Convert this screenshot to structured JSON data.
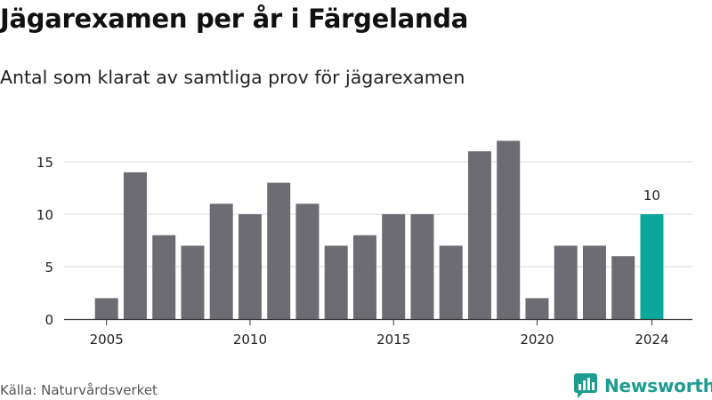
{
  "header": {
    "title": "Jägarexamen per år i Färgelanda",
    "subtitle": "Antal som klarat av samtliga prov för jägarexamen"
  },
  "footer": {
    "source": "Källa: Naturvårdsverket",
    "brand": "Newsworthy",
    "brand_icon": "newsworthy-logo-icon"
  },
  "colors": {
    "bar": "#6d6c72",
    "highlight": "#0ba79b",
    "grid": "#d9d9d9",
    "axis": "#333333",
    "brand": "#1d9c8f"
  },
  "chart_data": {
    "type": "bar",
    "title": "Jägarexamen per år i Färgelanda",
    "subtitle": "Antal som klarat av samtliga prov för jägarexamen",
    "xlabel": "",
    "ylabel": "",
    "categories": [
      2005,
      2006,
      2007,
      2008,
      2009,
      2010,
      2011,
      2012,
      2013,
      2014,
      2015,
      2016,
      2017,
      2018,
      2019,
      2020,
      2021,
      2022,
      2023,
      2024
    ],
    "values": [
      2,
      14,
      8,
      7,
      11,
      10,
      13,
      11,
      7,
      8,
      10,
      10,
      7,
      16,
      17,
      2,
      7,
      7,
      6,
      10
    ],
    "highlight_index": 19,
    "data_labels": [
      {
        "index": 19,
        "text": "10"
      }
    ],
    "x_ticks": [
      "2005",
      "2010",
      "2015",
      "2020",
      "2024"
    ],
    "y_ticks": [
      "0",
      "5",
      "10",
      "15"
    ],
    "ylim": [
      0,
      18
    ],
    "grid": "horizontal",
    "legend": "none"
  }
}
